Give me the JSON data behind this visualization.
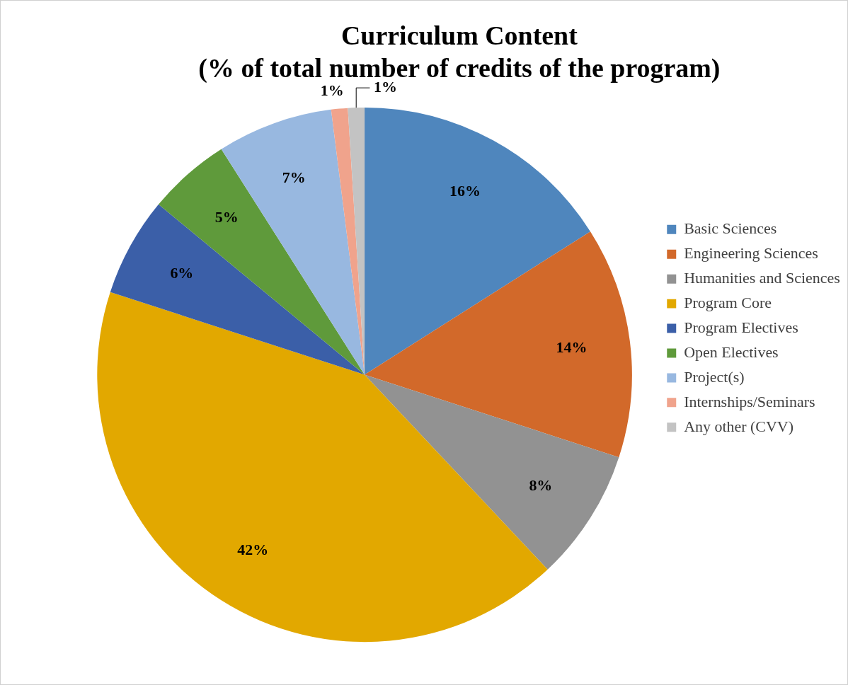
{
  "chart_data": {
    "type": "pie",
    "title": "Curriculum Content\n(% of total number of credits of the program)",
    "categories": [
      "Basic Sciences",
      "Engineering Sciences",
      "Humanities and Sciences",
      "Program Core",
      "Program Electives",
      "Open Electives",
      "Project(s)",
      "Internships/Seminars",
      "Any other (CVV)"
    ],
    "values": [
      16,
      14,
      8,
      42,
      6,
      5,
      7,
      1,
      1
    ],
    "colors": [
      "#4f86bd",
      "#d2692a",
      "#929292",
      "#e2a800",
      "#3b5fa8",
      "#5f9a3b",
      "#98b8e0",
      "#f0a38c",
      "#c3c3c3"
    ],
    "value_labels": [
      "16%",
      "14%",
      "8%",
      "42%",
      "6%",
      "5%",
      "7%",
      "1%",
      "1%"
    ],
    "legend": "right"
  }
}
